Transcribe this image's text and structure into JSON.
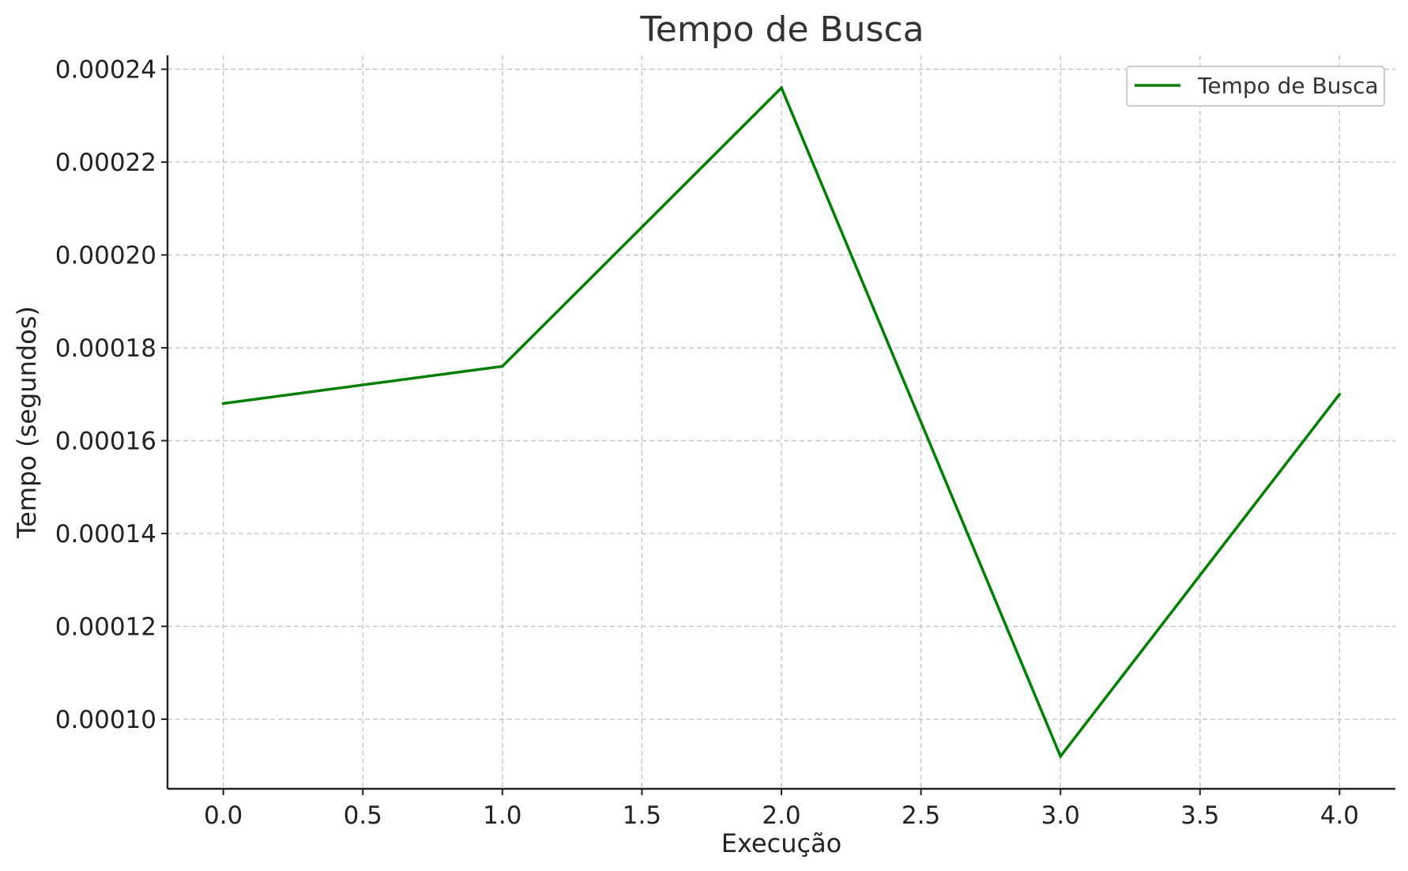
{
  "chart_data": {
    "type": "line",
    "title": "Tempo de Busca",
    "xlabel": "Execução",
    "ylabel": "Tempo (segundos)",
    "x": [
      0,
      1,
      2,
      3,
      4
    ],
    "series": [
      {
        "name": "Tempo de Busca",
        "color": "#008000",
        "values": [
          0.000168,
          0.000176,
          0.000236,
          9.2e-05,
          0.00017
        ]
      }
    ],
    "xlim": [
      -0.2,
      4.2
    ],
    "ylim": [
      8.5e-05,
      0.000243
    ],
    "x_ticks": [
      {
        "value": 0.0,
        "label": "0.0"
      },
      {
        "value": 0.5,
        "label": "0.5"
      },
      {
        "value": 1.0,
        "label": "1.0"
      },
      {
        "value": 1.5,
        "label": "1.5"
      },
      {
        "value": 2.0,
        "label": "2.0"
      },
      {
        "value": 2.5,
        "label": "2.5"
      },
      {
        "value": 3.0,
        "label": "3.0"
      },
      {
        "value": 3.5,
        "label": "3.5"
      },
      {
        "value": 4.0,
        "label": "4.0"
      }
    ],
    "y_ticks": [
      {
        "value": 0.0001,
        "label": "0.00010"
      },
      {
        "value": 0.00012,
        "label": "0.00012"
      },
      {
        "value": 0.00014,
        "label": "0.00014"
      },
      {
        "value": 0.00016,
        "label": "0.00016"
      },
      {
        "value": 0.00018,
        "label": "0.00018"
      },
      {
        "value": 0.0002,
        "label": "0.00020"
      },
      {
        "value": 0.00022,
        "label": "0.00022"
      },
      {
        "value": 0.00024,
        "label": "0.00024"
      }
    ],
    "grid": true,
    "legend_position": "top-right"
  }
}
